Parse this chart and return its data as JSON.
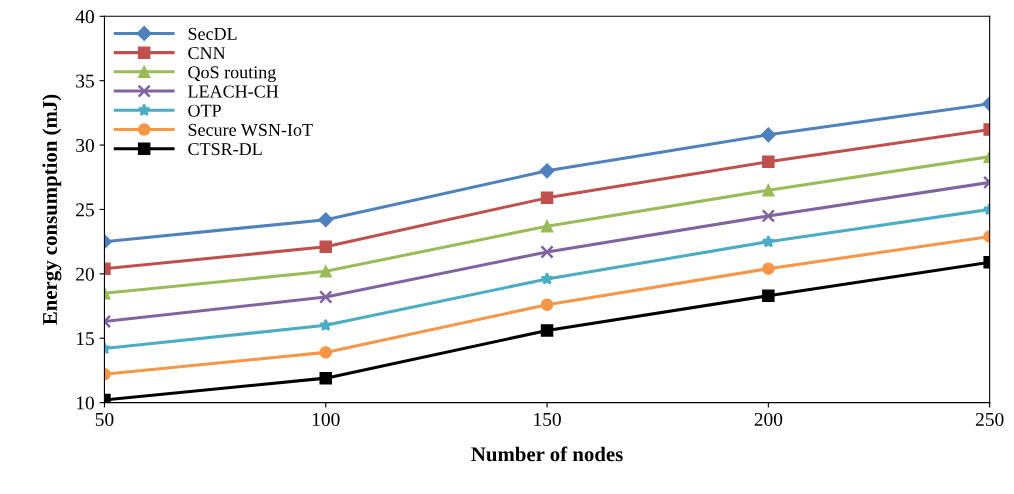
{
  "chart_data": {
    "type": "line",
    "xlabel": "Number of nodes",
    "ylabel": "Energy consumption (mJ)",
    "x": [
      50,
      100,
      150,
      200,
      250
    ],
    "xlim": [
      50,
      250
    ],
    "xticks": [
      50,
      100,
      150,
      200,
      250
    ],
    "ylim": [
      10,
      40
    ],
    "yticks": [
      10,
      15,
      20,
      25,
      30,
      35,
      40
    ],
    "grid": false,
    "legend": "top left",
    "series": [
      {
        "name": "SecDL",
        "color": "#4f81bd",
        "marker": "diamond",
        "values": [
          22.5,
          24.2,
          28.0,
          30.8,
          33.2
        ]
      },
      {
        "name": "CNN",
        "color": "#c0504d",
        "marker": "square",
        "values": [
          20.4,
          22.1,
          25.9,
          28.7,
          31.2
        ]
      },
      {
        "name": "QoS routing",
        "color": "#9bbb59",
        "marker": "triangle",
        "values": [
          18.5,
          20.2,
          23.7,
          26.5,
          29.1
        ]
      },
      {
        "name": "LEACH-CH",
        "color": "#8064a2",
        "marker": "cross",
        "values": [
          16.3,
          18.2,
          21.7,
          24.5,
          27.1
        ]
      },
      {
        "name": "OTP",
        "color": "#4bacc6",
        "marker": "star",
        "values": [
          14.2,
          16.0,
          19.6,
          22.5,
          25.0
        ]
      },
      {
        "name": "Secure WSN-IoT",
        "color": "#f79646",
        "marker": "circle",
        "values": [
          12.2,
          13.9,
          17.6,
          20.4,
          22.9
        ]
      },
      {
        "name": "CTSR-DL",
        "color": "#000000",
        "marker": "square",
        "values": [
          10.2,
          11.9,
          15.6,
          18.3,
          20.9
        ]
      }
    ]
  }
}
